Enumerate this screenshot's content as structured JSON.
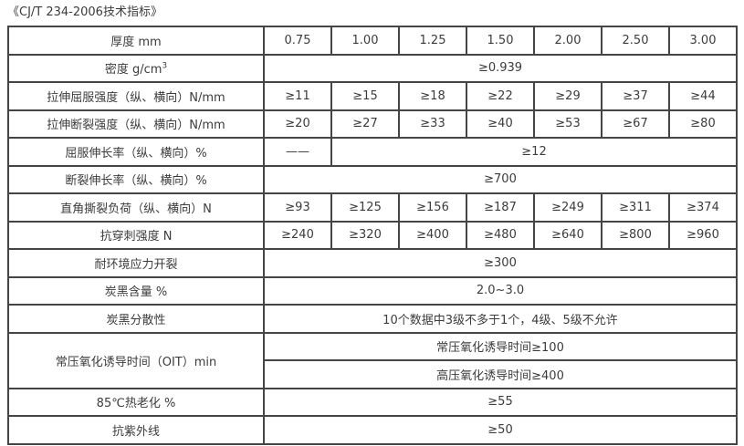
{
  "title": "《CJ/T 234-2006技术指标》",
  "table": {
    "rows": {
      "thickness": {
        "label": "厚度 mm",
        "values": [
          "0.75",
          "1.00",
          "1.25",
          "1.50",
          "2.00",
          "2.50",
          "3.00"
        ]
      },
      "density": {
        "label_main": "密度 g/cm",
        "label_sup": "3",
        "value": "≥0.939"
      },
      "tensile_yield_strength": {
        "label": "拉伸屈服强度（纵、横向）N/mm",
        "values": [
          "≥11",
          "≥15",
          "≥18",
          "≥22",
          "≥29",
          "≥37",
          "≥44"
        ]
      },
      "tensile_break_strength": {
        "label": "拉伸断裂强度（纵、横向）N/mm",
        "values": [
          "≥20",
          "≥27",
          "≥33",
          "≥40",
          "≥53",
          "≥67",
          "≥80"
        ]
      },
      "yield_elongation": {
        "label": "屈服伸长率（纵、横向）%",
        "first_value": "——",
        "value": "≥12"
      },
      "break_elongation": {
        "label": "断裂伸长率（纵、横向）%",
        "value": "≥700"
      },
      "right_angle_tear_load": {
        "label": "直角撕裂负荷（纵、横向）N",
        "values": [
          "≥93",
          "≥125",
          "≥156",
          "≥187",
          "≥249",
          "≥311",
          "≥374"
        ]
      },
      "puncture_resistance": {
        "label": "抗穿刺强度 N",
        "values": [
          "≥240",
          "≥320",
          "≥400",
          "≥480",
          "≥640",
          "≥800",
          "≥960"
        ]
      },
      "environmental_stress_cracking": {
        "label": "耐环境应力开裂",
        "value": "≥300"
      },
      "carbon_black_content": {
        "label": "炭黑含量 %",
        "value": "2.0~3.0"
      },
      "carbon_black_dispersion": {
        "label": "炭黑分散性",
        "value": "10个数据中3级不多于1个，4级、5级不允许"
      },
      "oxidation_induction_time": {
        "label": "常压氧化诱导时间（OIT）min",
        "value_normal_pressure": "常压氧化诱导时间≥100",
        "value_high_pressure": "高压氧化诱导时间≥400"
      },
      "heat_aging_85c": {
        "label": "85℃热老化 %",
        "value": "≥55"
      },
      "uv_resistance": {
        "label": "抗紫外线",
        "value": "≥50"
      }
    }
  }
}
